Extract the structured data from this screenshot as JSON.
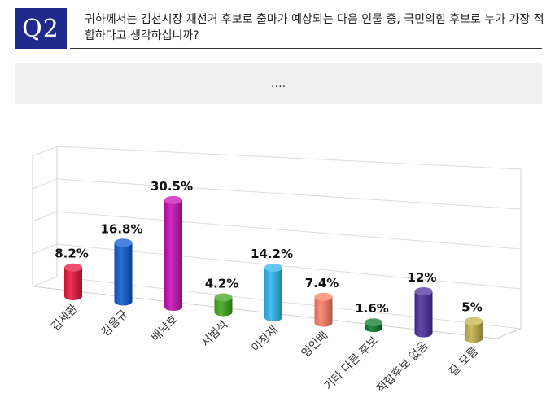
{
  "question": {
    "badge": "Q2",
    "text": "귀하께서는 김천시장 재선거 후보로 출마가 예상되는 다음 인물 중, 국민의힘 후보로 누가 가장 적합하다고 생각하십니까?"
  },
  "note": "….",
  "chart_data": {
    "type": "bar",
    "title": "",
    "xlabel": "",
    "ylabel": "",
    "ylim": [
      0,
      35
    ],
    "grid": true,
    "categories": [
      "김세환",
      "김응규",
      "배낙호",
      "서범석",
      "이창재",
      "임인배",
      "기타 다른 후보",
      "적합후보 없음",
      "잘 모름"
    ],
    "values": [
      8.2,
      16.8,
      30.5,
      4.2,
      14.2,
      7.4,
      1.6,
      12,
      5
    ],
    "value_labels": [
      "8.2%",
      "16.8%",
      "30.5%",
      "4.2%",
      "14.2%",
      "7.4%",
      "1.6%",
      "12%",
      "5%"
    ],
    "colors": [
      "#e8163c",
      "#0b5ccf",
      "#c80fb4",
      "#3fa61b",
      "#2eb6ee",
      "#fb7f66",
      "#0c7a2c",
      "#4e2f9c",
      "#c4b34a"
    ]
  }
}
